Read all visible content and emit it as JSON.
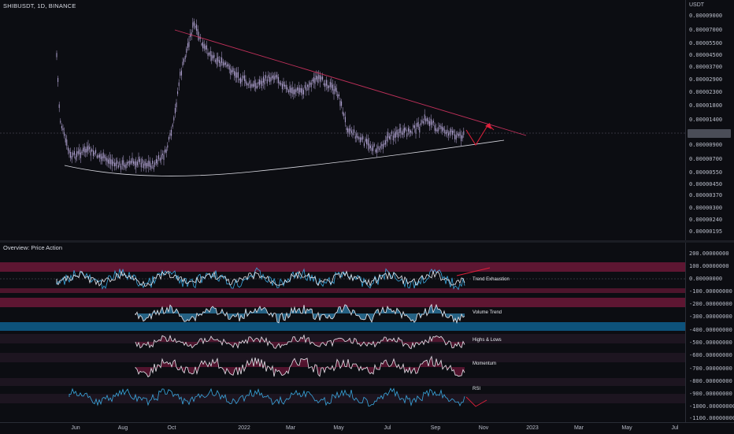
{
  "header": {
    "symbol_line": "SHIBUSDT, 1D, BINANCE"
  },
  "price_axis": {
    "currency": "USDT",
    "labels": [
      "0.00009000",
      "0.00007000",
      "0.00005500",
      "0.00004500",
      "0.00003700",
      "0.00002900",
      "0.00002300",
      "0.00001800",
      "0.00001400",
      "0.00000900",
      "0.00000700",
      "0.00000550",
      "0.00000450",
      "0.00000370",
      "0.00000300",
      "0.00000240",
      "0.00000195"
    ]
  },
  "indicator_pane": {
    "title": "Overview: Price Action",
    "sub_labels": [
      "Trend Exhaustion",
      "Volume Trend",
      "Highs & Lows",
      "Momentum",
      "RSI"
    ]
  },
  "osc_axis": {
    "labels": [
      "200.00000000",
      "100.00000000",
      "0.00000000",
      "-100.00000000",
      "-200.00000000",
      "-300.00000000",
      "-400.00000000",
      "-500.00000000",
      "-600.00000000",
      "-700.00000000",
      "-800.00000000",
      "-900.00000000",
      "-1000.00000000",
      "-1100.00000000"
    ]
  },
  "time_axis": {
    "labels": [
      "Jun",
      "Aug",
      "Oct",
      "2022",
      "Mar",
      "May",
      "Jul",
      "Sep",
      "Nov",
      "2023",
      "Mar",
      "May",
      "Jul"
    ]
  },
  "colors": {
    "background": "#0c0d12",
    "candles": "#b4a6d6",
    "resistance_line": "#c0305a",
    "support_line": "#d8d8e0",
    "projection": "#e0203a",
    "band_pink": "#7a1a3e",
    "band_blue": "#0e5f8e",
    "series_blue": "#3aa8e0"
  }
}
